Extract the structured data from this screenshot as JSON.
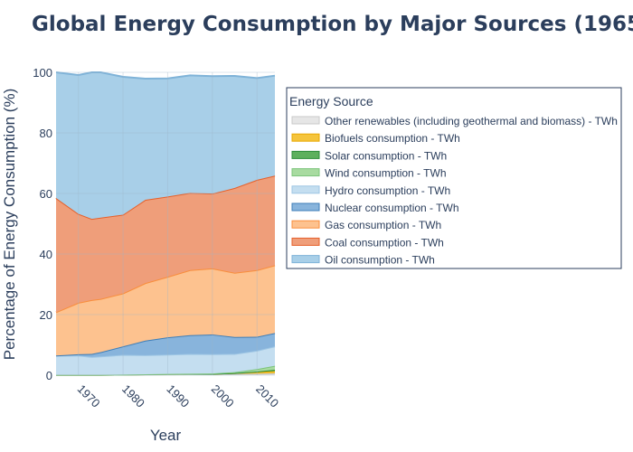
{
  "chart_data": {
    "type": "area",
    "title": "Global Energy Consumption by Major Sources (1965",
    "xlabel": "Year",
    "ylabel": "Percentage of Energy Consumption (%)",
    "xlim": [
      1965,
      2014
    ],
    "ylim": [
      0,
      100
    ],
    "x_ticks": [
      1970,
      1980,
      1990,
      2000,
      2010
    ],
    "y_ticks": [
      0,
      20,
      40,
      60,
      80,
      100
    ],
    "grid": true,
    "stacked": true,
    "legend_title": "Energy Source",
    "legend_position": "right",
    "x": [
      1965,
      1970,
      1973,
      1975,
      1980,
      1985,
      1990,
      1995,
      2000,
      2005,
      2010,
      2014
    ],
    "series": [
      {
        "name": "Oil consumption - TWh",
        "color": "#a8cfe8",
        "line_color": "#7fb3d8",
        "values": [
          41.5,
          45.8,
          48.8,
          48.0,
          45.5,
          40.0,
          39.0,
          38.8,
          38.8,
          37.0,
          33.6,
          33.0
        ]
      },
      {
        "name": "Coal consumption - TWh",
        "color": "#ef9e7a",
        "line_color": "#e6602a",
        "values": [
          37.7,
          29.4,
          26.8,
          26.8,
          26.0,
          27.5,
          26.5,
          25.5,
          24.7,
          28.0,
          29.8,
          29.6
        ]
      },
      {
        "name": "Gas consumption - TWh",
        "color": "#fdc28f",
        "line_color": "#f98e3c",
        "values": [
          14.3,
          17.0,
          17.8,
          17.6,
          17.5,
          19.0,
          20.0,
          21.5,
          21.8,
          21.2,
          22.0,
          22.4
        ]
      },
      {
        "name": "Nuclear consumption - TWh",
        "color": "#88b4dc",
        "line_color": "#3e7eb8",
        "values": [
          0.1,
          0.4,
          1.0,
          1.4,
          2.8,
          4.8,
          5.7,
          6.2,
          6.5,
          5.6,
          4.6,
          4.4
        ]
      },
      {
        "name": "Hydro consumption - TWh",
        "color": "#c4def0",
        "line_color": "#9ec6e4",
        "values": [
          6.3,
          6.4,
          5.9,
          6.1,
          6.5,
          6.3,
          6.4,
          6.5,
          6.4,
          6.0,
          6.1,
          6.4
        ]
      },
      {
        "name": "Wind consumption - TWh",
        "color": "#a8dba0",
        "line_color": "#7cc47a",
        "values": [
          0.0,
          0.0,
          0.0,
          0.0,
          0.0,
          0.0,
          0.0,
          0.05,
          0.1,
          0.3,
          0.8,
          1.3
        ]
      },
      {
        "name": "Solar consumption - TWh",
        "color": "#5db05d",
        "line_color": "#2c8c3a",
        "values": [
          0.0,
          0.0,
          0.0,
          0.0,
          0.0,
          0.0,
          0.0,
          0.0,
          0.0,
          0.01,
          0.1,
          0.5
        ]
      },
      {
        "name": "Biofuels consumption - TWh",
        "color": "#f5c43c",
        "line_color": "#e8a800",
        "values": [
          0.0,
          0.0,
          0.0,
          0.0,
          0.05,
          0.1,
          0.15,
          0.15,
          0.15,
          0.3,
          0.6,
          0.7
        ]
      },
      {
        "name": "Other renewables (including geothermal and biomass) - TWh",
        "color": "#e6e6e6",
        "line_color": "#c9c9c9",
        "values": [
          0.1,
          0.1,
          0.1,
          0.1,
          0.15,
          0.2,
          0.25,
          0.3,
          0.3,
          0.4,
          0.5,
          0.6
        ]
      }
    ]
  }
}
